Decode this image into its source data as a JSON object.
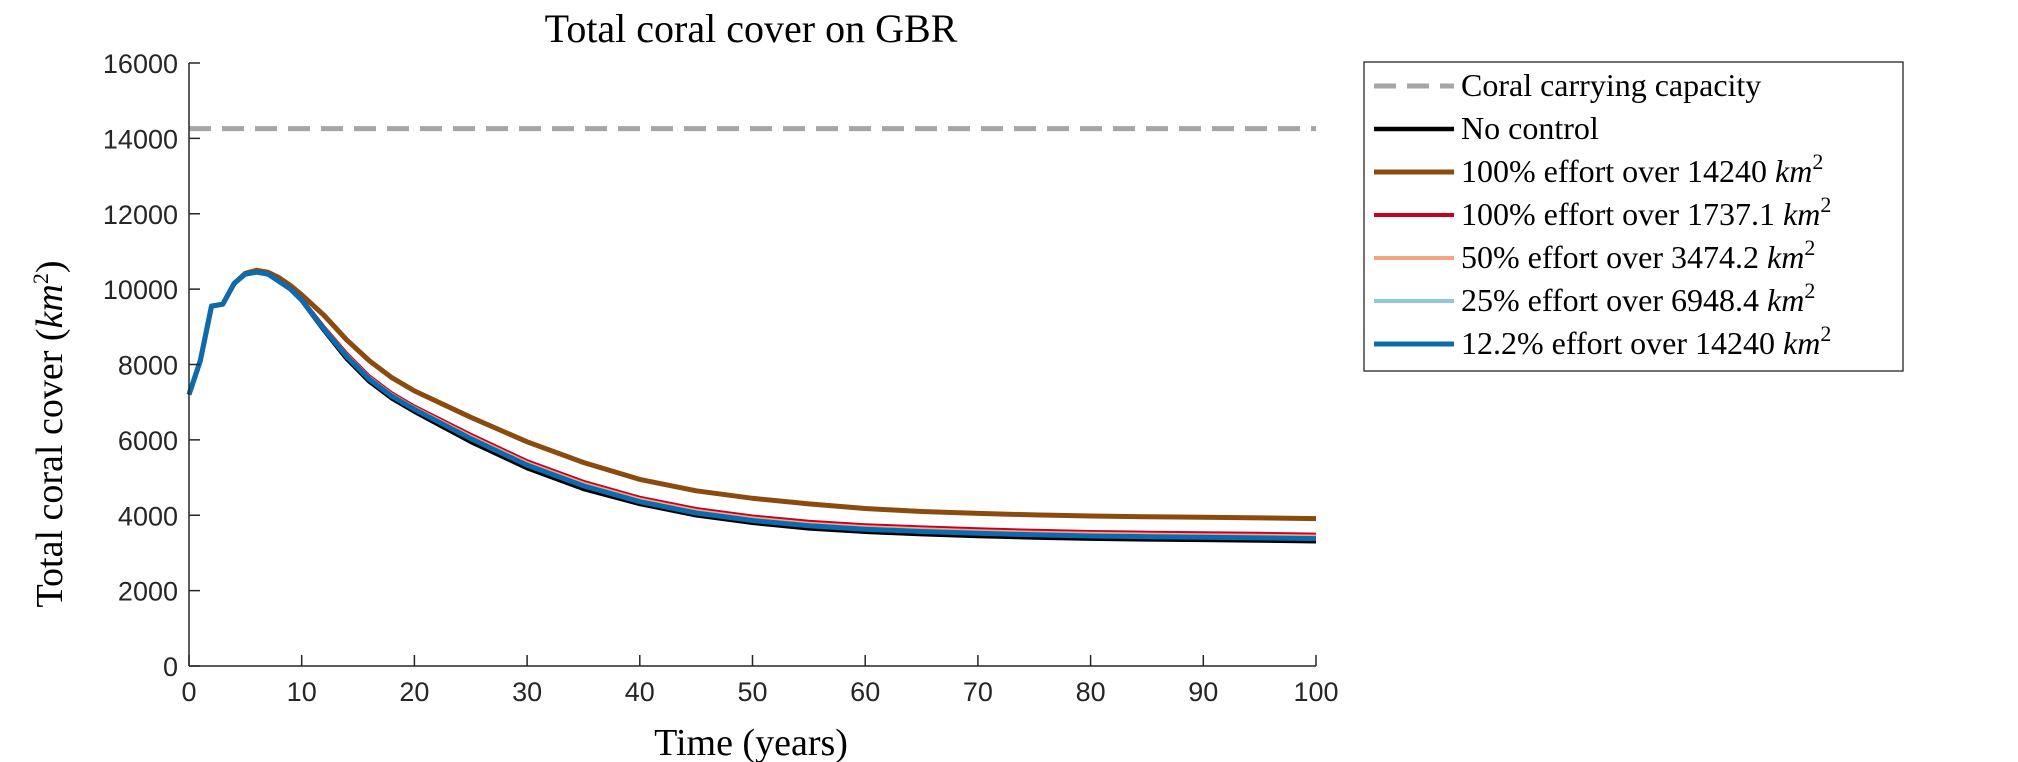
{
  "chart_data": {
    "type": "line",
    "title": "Total coral cover on GBR",
    "xlabel": "Time (years)",
    "ylabel_text": "Total coral cover (",
    "ylabel_unit": "km",
    "ylabel_sup": "2",
    "ylabel_close": ")",
    "xlim": [
      0,
      100
    ],
    "ylim": [
      0,
      16000
    ],
    "xticks": [
      "0",
      "10",
      "20",
      "30",
      "40",
      "50",
      "60",
      "70",
      "80",
      "90",
      "100"
    ],
    "yticks": [
      "0",
      "2000",
      "4000",
      "6000",
      "8000",
      "10000",
      "12000",
      "14000",
      "16000"
    ],
    "grid": false,
    "legend_position": "outside-right",
    "x": [
      0,
      1,
      2,
      3,
      4,
      5,
      6,
      7,
      8,
      9,
      10,
      12,
      14,
      16,
      18,
      20,
      25,
      30,
      35,
      40,
      45,
      50,
      55,
      60,
      65,
      70,
      75,
      80,
      85,
      90,
      95,
      100
    ],
    "series": [
      {
        "name": "Coral carrying capacity",
        "color": "#a6a6a6",
        "dashed": true,
        "values": [
          14260,
          14260,
          14260,
          14260,
          14260,
          14260,
          14260,
          14260,
          14260,
          14260,
          14260,
          14260,
          14260,
          14260,
          14260,
          14260,
          14260,
          14260,
          14260,
          14260,
          14260,
          14260,
          14260,
          14260,
          14260,
          14260,
          14260,
          14260,
          14260,
          14260,
          14260,
          14260
        ]
      },
      {
        "name": "No control",
        "color": "#000000",
        "values": [
          7200,
          8100,
          9550,
          9600,
          10150,
          10400,
          10450,
          10400,
          10200,
          10000,
          9700,
          8900,
          8150,
          7550,
          7100,
          6750,
          5950,
          5250,
          4700,
          4300,
          4000,
          3800,
          3650,
          3560,
          3500,
          3450,
          3410,
          3380,
          3360,
          3345,
          3330,
          3310
        ]
      },
      {
        "name": "100% effort over 14240",
        "color": "#8b4b0f",
        "values": [
          7200,
          8100,
          9550,
          9600,
          10150,
          10420,
          10500,
          10450,
          10300,
          10100,
          9850,
          9300,
          8650,
          8100,
          7650,
          7300,
          6600,
          5950,
          5400,
          4950,
          4650,
          4450,
          4300,
          4180,
          4100,
          4050,
          4010,
          3980,
          3960,
          3945,
          3930,
          3910
        ]
      },
      {
        "name": "100% effort over 1737.1",
        "color": "#c8001e",
        "values": [
          7200,
          8100,
          9550,
          9600,
          10150,
          10410,
          10470,
          10420,
          10230,
          10030,
          9750,
          9000,
          8300,
          7700,
          7250,
          6900,
          6150,
          5450,
          4900,
          4480,
          4180,
          3980,
          3840,
          3750,
          3690,
          3640,
          3600,
          3570,
          3550,
          3535,
          3520,
          3500
        ]
      },
      {
        "name": "50% effort over 3474.2",
        "color": "#f4a582",
        "values": [
          7200,
          8100,
          9550,
          9600,
          10150,
          10405,
          10460,
          10410,
          10220,
          10020,
          9730,
          8970,
          8260,
          7660,
          7210,
          6860,
          6100,
          5400,
          4850,
          4430,
          4130,
          3930,
          3790,
          3700,
          3640,
          3590,
          3550,
          3520,
          3500,
          3485,
          3470,
          3450
        ]
      },
      {
        "name": "25% effort over 6948.4",
        "color": "#92c5de",
        "values": [
          7200,
          8100,
          9550,
          9600,
          10150,
          10402,
          10455,
          10405,
          10210,
          10010,
          9720,
          8950,
          8230,
          7630,
          7180,
          6830,
          6060,
          5360,
          4810,
          4390,
          4090,
          3890,
          3750,
          3660,
          3600,
          3550,
          3510,
          3480,
          3460,
          3445,
          3430,
          3410
        ]
      },
      {
        "name": "12.2% effort over 14240",
        "color": "#0b6bae",
        "values": [
          7200,
          8100,
          9550,
          9600,
          10150,
          10400,
          10450,
          10400,
          10200,
          10000,
          9710,
          8930,
          8210,
          7610,
          7160,
          6810,
          6030,
          5330,
          4780,
          4360,
          4060,
          3860,
          3720,
          3630,
          3570,
          3520,
          3480,
          3450,
          3430,
          3415,
          3400,
          3380
        ]
      }
    ],
    "legend": [
      {
        "text": "Coral carrying capacity",
        "unit": "",
        "sup": ""
      },
      {
        "text": "No control",
        "unit": "",
        "sup": ""
      },
      {
        "text": "100% effort over 14240 ",
        "unit": "km",
        "sup": "2"
      },
      {
        "text": "100% effort over 1737.1 ",
        "unit": "km",
        "sup": "2"
      },
      {
        "text": "50% effort over 3474.2 ",
        "unit": "km",
        "sup": "2"
      },
      {
        "text": "25% effort over 6948.4 ",
        "unit": "km",
        "sup": "2"
      },
      {
        "text": "12.2% effort over 14240 ",
        "unit": "km",
        "sup": "2"
      }
    ]
  }
}
